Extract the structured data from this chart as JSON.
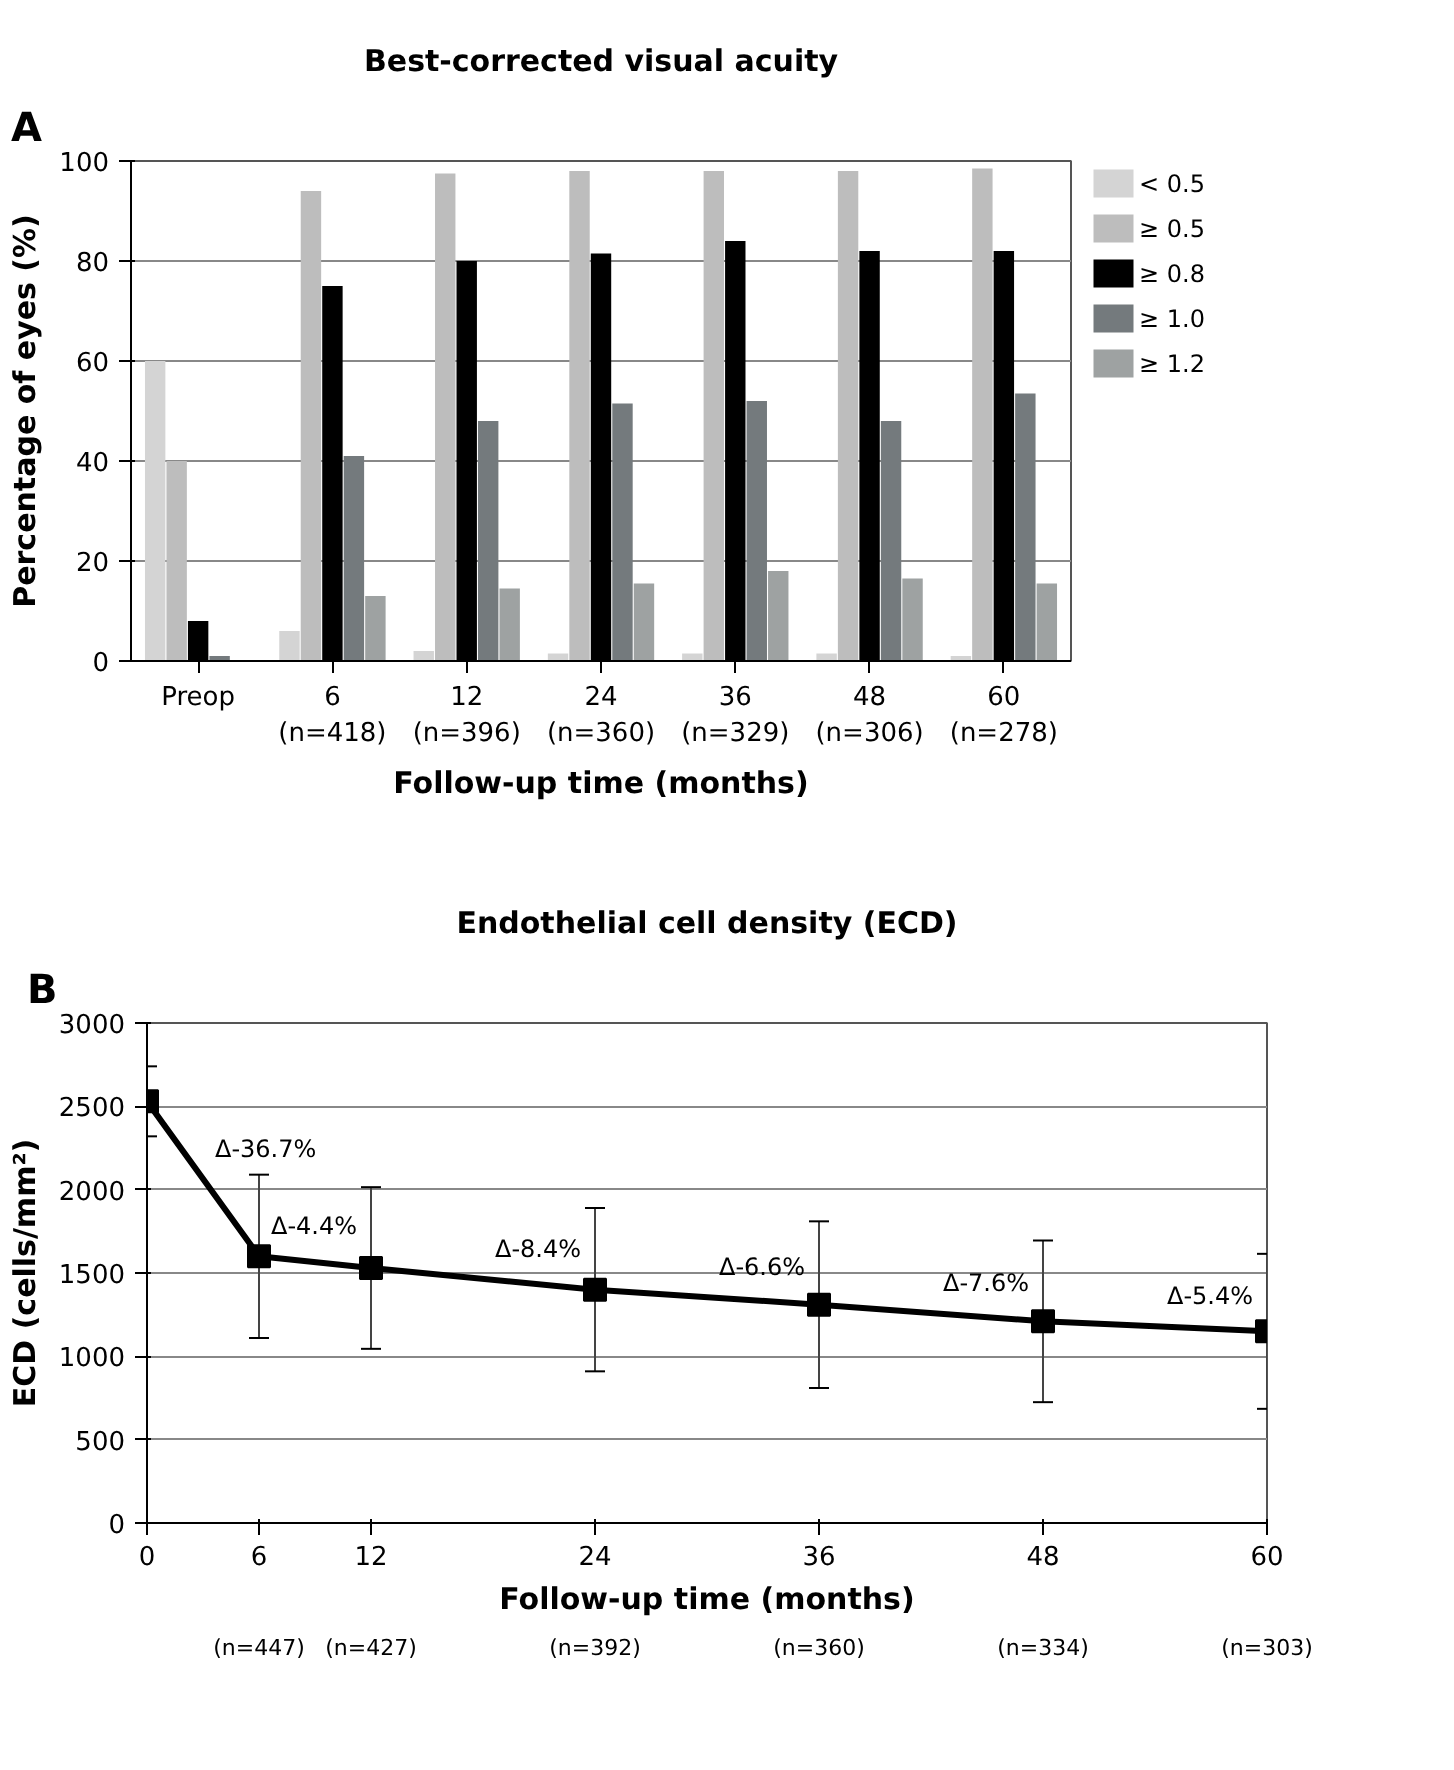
{
  "chart_data": [
    {
      "type": "bar",
      "title": "Best-corrected visual acuity",
      "xlabel": "Follow-up time (months)",
      "ylabel": "Percentage of eyes (%)",
      "categories": [
        "Preop",
        "6\n(n=418)",
        "12\n(n=396)",
        "24\n(n=360)",
        "36\n(n=329)",
        "48\n(n=306)",
        "60\n(n=278)"
      ],
      "series": [
        {
          "name": "< 0.5",
          "color": "#d4d4d4",
          "values": [
            60,
            6,
            2,
            1.5,
            1.5,
            1.5,
            1
          ]
        },
        {
          "name": "≥ 0.5",
          "color": "#bdbdbd",
          "values": [
            40,
            94,
            97.5,
            98,
            98,
            98,
            98.5
          ]
        },
        {
          "name": "≥ 0.8",
          "color": "#000000",
          "values": [
            8,
            75,
            80,
            81.5,
            84,
            82,
            82
          ]
        },
        {
          "name": "≥ 1.0",
          "color": "#747a7d",
          "values": [
            1,
            41,
            48,
            51.5,
            52,
            48,
            53.5
          ]
        },
        {
          "name": "≥ 1.2",
          "color": "#9ea2a2",
          "values": [
            0,
            13,
            14.5,
            15.5,
            18,
            16.5,
            15.5
          ]
        }
      ],
      "ylim": [
        0,
        100
      ],
      "yticks": [
        0,
        20,
        40,
        60,
        80,
        100
      ],
      "grid": "y",
      "legend": "right",
      "annotations": [
        "A"
      ]
    },
    {
      "type": "line",
      "title": "Endothelial cell density (ECD)",
      "xlabel": "Follow-up time (months)",
      "ylabel": "ECD (cells/mm²)",
      "x": [
        0,
        6,
        12,
        24,
        36,
        48,
        60
      ],
      "series": [
        {
          "color": "#000000",
          "values": [
            2530,
            1600,
            1530,
            1400,
            1310,
            1210,
            1150
          ],
          "errors": [
            210,
            490,
            485,
            490,
            500,
            485,
            465
          ]
        }
      ],
      "xlim": [
        0,
        60
      ],
      "xticks": [
        0,
        6,
        12,
        24,
        36,
        48,
        60
      ],
      "ylim": [
        0,
        3000
      ],
      "yticks": [
        0,
        500,
        1000,
        1500,
        2000,
        2500,
        3000
      ],
      "grid": "y",
      "marker": "square",
      "line_style": "solid",
      "annotations": [
        "B",
        {
          "text": "Δ-36.7%",
          "x": 3,
          "y": 2065
        },
        {
          "text": "Δ-4.4%",
          "x": 6,
          "y": 1600
        },
        {
          "text": "Δ-8.4%",
          "x": 18,
          "y": 1465
        },
        {
          "text": "Δ-6.6%",
          "x": 30,
          "y": 1355
        },
        {
          "text": "Δ-7.6%",
          "x": 42,
          "y": 1260
        },
        {
          "text": "Δ-5.4%",
          "x": 54,
          "y": 1180
        },
        "(n=447)",
        "(n=427)",
        "(n=392)",
        "(n=360)",
        "(n=334)",
        "(n=303)"
      ]
    }
  ]
}
